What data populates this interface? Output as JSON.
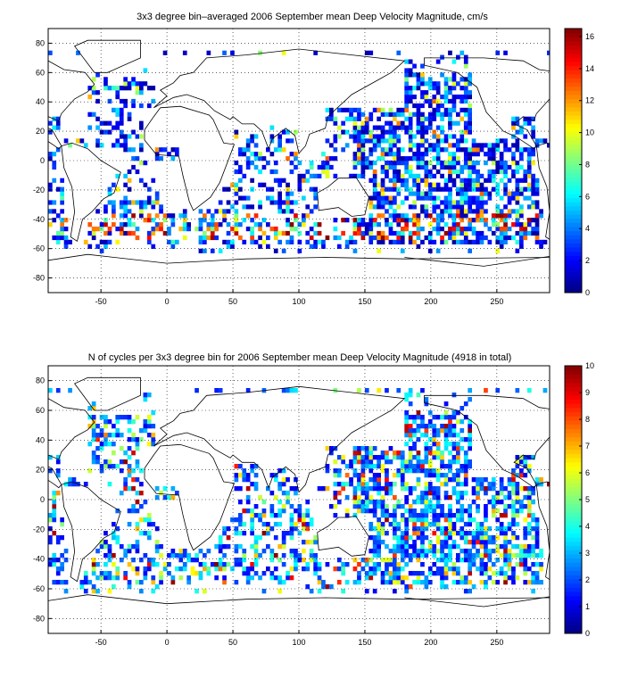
{
  "chart_data": [
    {
      "type": "heatmap",
      "title": "3x3 degree bin–averaged 2006 September mean Deep Velocity Magnitude, cm/s",
      "xlabel": "",
      "ylabel": "",
      "xlim": [
        -90,
        290
      ],
      "ylim": [
        -90,
        90
      ],
      "x_ticks": [
        -50,
        0,
        50,
        100,
        150,
        200,
        250
      ],
      "y_ticks": [
        -80,
        -60,
        -40,
        -20,
        0,
        20,
        40,
        60,
        80
      ],
      "grid": true,
      "bin_size_deg": 3,
      "colormap": "jet",
      "colorbar": {
        "min": 0,
        "max": 16.5,
        "ticks": [
          0,
          2,
          4,
          6,
          8,
          10,
          12,
          14,
          16
        ]
      },
      "notes": "Dense coverage in the Pacific (mostly low values 1-4 cm/s), scattered bins in the Atlantic and Indian Oceans, high values (12-16) along the Antarctic Circumpolar Current near 40-55S."
    },
    {
      "type": "heatmap",
      "title": "N of cycles per 3x3 degree bin for 2006 September mean Deep Velocity Magnitude (4918 in total)",
      "xlabel": "",
      "ylabel": "",
      "xlim": [
        -90,
        290
      ],
      "ylim": [
        -90,
        90
      ],
      "x_ticks": [
        -50,
        0,
        50,
        100,
        150,
        200,
        250
      ],
      "y_ticks": [
        -80,
        -60,
        -40,
        -20,
        0,
        20,
        40,
        60,
        80
      ],
      "grid": true,
      "bin_size_deg": 3,
      "colormap": "jet",
      "colorbar": {
        "min": 0,
        "max": 10,
        "ticks": [
          0,
          1,
          2,
          3,
          4,
          5,
          6,
          7,
          8,
          9,
          10
        ]
      },
      "notes": "Most bins contain 1-4 cycles; scattered bins with 5-10 cycles."
    }
  ]
}
